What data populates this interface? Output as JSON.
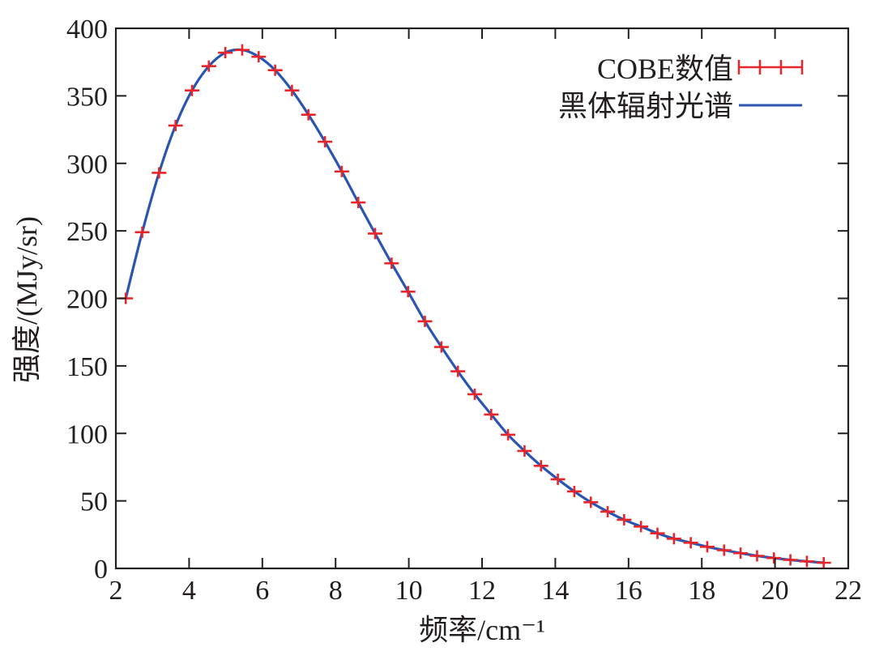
{
  "chart_data": {
    "type": "line",
    "xlabel": "频率/cm⁻¹",
    "ylabel": "强度/(MJy/sr)",
    "xlim": [
      2,
      22
    ],
    "ylim": [
      0,
      400
    ],
    "x_ticks": [
      2,
      4,
      6,
      8,
      10,
      12,
      14,
      16,
      18,
      20,
      22
    ],
    "y_ticks": [
      0,
      50,
      100,
      150,
      200,
      250,
      300,
      350,
      400
    ],
    "grid": false,
    "legend_position": "top-right",
    "colors": {
      "data": "#e8252a",
      "curve": "#2a55b0",
      "axis": "#231f20"
    },
    "series": [
      {
        "name": "COBE数值",
        "kind": "points_with_xerr",
        "x": [
          2.27,
          2.72,
          3.18,
          3.63,
          4.08,
          4.54,
          4.99,
          5.45,
          5.9,
          6.35,
          6.81,
          7.26,
          7.71,
          8.17,
          8.62,
          9.08,
          9.53,
          9.98,
          10.44,
          10.89,
          11.34,
          11.8,
          12.25,
          12.71,
          13.16,
          13.61,
          14.07,
          14.52,
          14.97,
          15.43,
          15.88,
          16.34,
          16.79,
          17.24,
          17.7,
          18.15,
          18.61,
          19.06,
          19.51,
          19.97,
          20.42,
          20.87,
          21.33
        ],
        "y": [
          200,
          249,
          293,
          328,
          354,
          372,
          382,
          384,
          379,
          369,
          354,
          336,
          316,
          294,
          271,
          248,
          226,
          205,
          183,
          164,
          146,
          129,
          114,
          99,
          87,
          76,
          66,
          57,
          49,
          42,
          36,
          31,
          26,
          22,
          19,
          16,
          13.5,
          11.3,
          9.3,
          7.7,
          6.3,
          5.2,
          4.2
        ]
      },
      {
        "name": "黑体辐射光谱",
        "kind": "curve",
        "x": [
          2.27,
          2.72,
          3.18,
          3.63,
          4.08,
          4.54,
          4.99,
          5.45,
          5.9,
          6.35,
          6.81,
          7.26,
          7.71,
          8.17,
          8.62,
          9.08,
          9.53,
          9.98,
          10.44,
          10.89,
          11.34,
          11.8,
          12.25,
          12.71,
          13.16,
          13.61,
          14.07,
          14.52,
          14.97,
          15.43,
          15.88,
          16.34,
          16.79,
          17.24,
          17.7,
          18.15,
          18.61,
          19.06,
          19.51,
          19.97,
          20.42,
          20.87,
          21.33
        ],
        "y": [
          200,
          249,
          293,
          328,
          354,
          372,
          382,
          384,
          379,
          369,
          354,
          336,
          316,
          294,
          271,
          248,
          226,
          205,
          183,
          164,
          146,
          129,
          114,
          99,
          87,
          76,
          66,
          57,
          49,
          42,
          36,
          31,
          26,
          22,
          19,
          16,
          13.5,
          11.3,
          9.3,
          7.7,
          6.3,
          5.2,
          4.2
        ]
      }
    ]
  }
}
